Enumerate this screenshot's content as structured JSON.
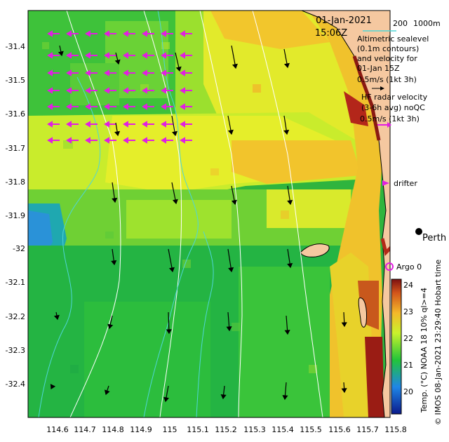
{
  "header": {
    "date": "01-Jan-2021",
    "time": "15:06Z",
    "depth_labels": [
      "200",
      "1000m"
    ]
  },
  "legend": {
    "altimetry": [
      "Altimetric sealevel",
      "(0.1m contours)",
      "and velocity for",
      "01-Jan 15Z",
      "0.5m/s (1kt 3h)"
    ],
    "radar": [
      "HF radar velocity",
      "(3-6h avg) noQC",
      "0.5m/s (1kt 3h)"
    ],
    "drifter": "drifter",
    "argo": "Argo 0",
    "city": "Perth"
  },
  "axes": {
    "lat_ticks": [
      "-31.4",
      "-31.5",
      "-31.6",
      "-31.7",
      "-31.8",
      "-31.9",
      "-32",
      "-32.1",
      "-32.2",
      "-32.3",
      "-32.4"
    ],
    "lon_ticks": [
      "114.6",
      "114.7",
      "114.8",
      "114.9",
      "115",
      "115.1",
      "115.2",
      "115.3",
      "115.4",
      "115.5",
      "115.6",
      "115.7",
      "115.8"
    ]
  },
  "colorbar": {
    "ticks": [
      "24",
      "23",
      "22",
      "21",
      "20"
    ],
    "caption": "Temp. (°C) NOAA 18 10% ql>=4"
  },
  "credit": "© IMOS 08-Jan-2021 23:29:40 Hobart time",
  "colors": {
    "land": "#f5c8a0",
    "contour": "#ffffff",
    "isobath": "#4fd6d6",
    "radar_arrow": "#e21ee2",
    "alt_arrow": "#000000"
  }
}
